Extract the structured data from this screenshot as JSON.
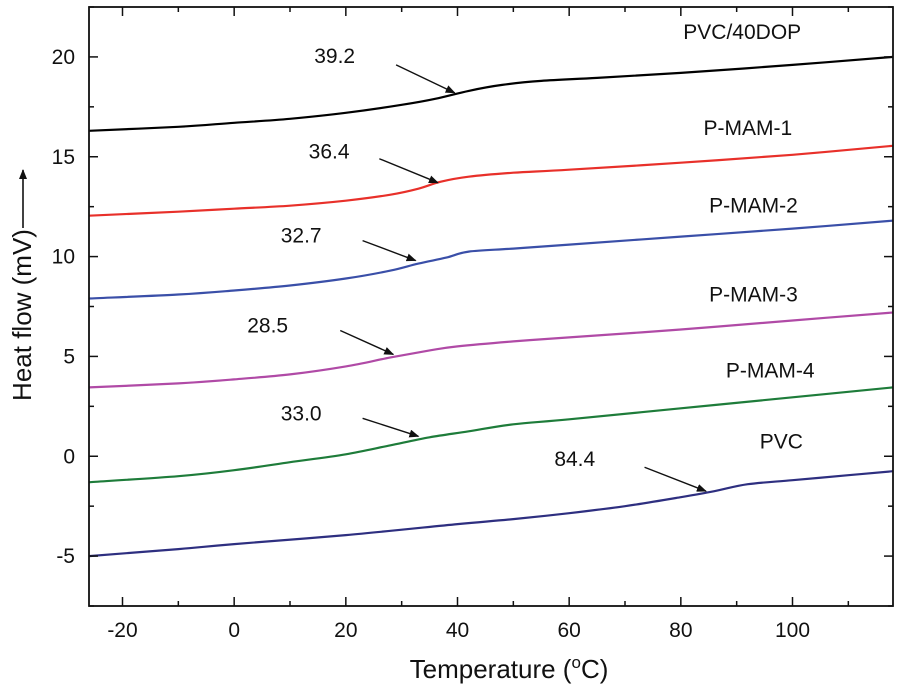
{
  "chart_data": {
    "type": "line",
    "title": "",
    "xlabel": "Temperature (",
    "xlabel_sup": "o",
    "xlabel_suffix": "C)",
    "ylabel": "Heat flow (mV)",
    "xlim": [
      -26,
      118
    ],
    "ylim": [
      -7.5,
      22.5
    ],
    "xticks": [
      -20,
      0,
      20,
      40,
      60,
      80,
      100
    ],
    "yticks": [
      -5,
      0,
      5,
      10,
      15,
      20
    ],
    "grid": false,
    "series": [
      {
        "name": "PVC/40DOP",
        "color": "#000000",
        "tg_label": "39.2",
        "tg_arrow_from": [
          29,
          19.6
        ],
        "tg_arrow_to": [
          39.5,
          18.2
        ],
        "tg_label_at": [
          18,
          19.7
        ],
        "name_at": [
          91,
          20.9
        ],
        "points": [
          [
            -26,
            16.3
          ],
          [
            -10,
            16.5
          ],
          [
            0,
            16.7
          ],
          [
            10,
            16.9
          ],
          [
            20,
            17.2
          ],
          [
            30,
            17.6
          ],
          [
            36,
            17.9
          ],
          [
            42,
            18.3
          ],
          [
            48,
            18.6
          ],
          [
            55,
            18.8
          ],
          [
            65,
            18.95
          ],
          [
            80,
            19.2
          ],
          [
            100,
            19.6
          ],
          [
            118,
            20.0
          ]
        ]
      },
      {
        "name": "P-MAM-1",
        "color": "#e8302a",
        "tg_label": "36.4",
        "tg_arrow_from": [
          26,
          14.9
        ],
        "tg_arrow_to": [
          36.5,
          13.7
        ],
        "tg_label_at": [
          17,
          14.9
        ],
        "name_at": [
          92,
          16.1
        ],
        "points": [
          [
            -26,
            12.05
          ],
          [
            -10,
            12.25
          ],
          [
            0,
            12.4
          ],
          [
            10,
            12.55
          ],
          [
            20,
            12.8
          ],
          [
            28,
            13.1
          ],
          [
            33,
            13.4
          ],
          [
            37,
            13.75
          ],
          [
            42,
            14.0
          ],
          [
            50,
            14.2
          ],
          [
            60,
            14.35
          ],
          [
            80,
            14.7
          ],
          [
            100,
            15.1
          ],
          [
            118,
            15.55
          ]
        ]
      },
      {
        "name": "P-MAM-2",
        "color": "#3a4fa8",
        "tg_label": "32.7",
        "tg_arrow_from": [
          23,
          10.8
        ],
        "tg_arrow_to": [
          32.5,
          9.8
        ],
        "tg_label_at": [
          12,
          10.7
        ],
        "name_at": [
          93,
          12.2
        ],
        "points": [
          [
            -26,
            7.9
          ],
          [
            -10,
            8.1
          ],
          [
            0,
            8.3
          ],
          [
            10,
            8.55
          ],
          [
            20,
            8.9
          ],
          [
            28,
            9.3
          ],
          [
            33,
            9.65
          ],
          [
            38,
            9.95
          ],
          [
            42,
            10.25
          ],
          [
            50,
            10.4
          ],
          [
            60,
            10.6
          ],
          [
            80,
            11.0
          ],
          [
            100,
            11.4
          ],
          [
            118,
            11.8
          ]
        ]
      },
      {
        "name": "P-MAM-3",
        "color": "#b04aa6",
        "tg_label": "28.5",
        "tg_arrow_from": [
          19,
          6.3
        ],
        "tg_arrow_to": [
          28.5,
          5.1
        ],
        "tg_label_at": [
          6,
          6.2
        ],
        "name_at": [
          93,
          7.75
        ],
        "points": [
          [
            -26,
            3.45
          ],
          [
            -10,
            3.65
          ],
          [
            0,
            3.85
          ],
          [
            10,
            4.1
          ],
          [
            20,
            4.5
          ],
          [
            28,
            4.95
          ],
          [
            35,
            5.3
          ],
          [
            40,
            5.5
          ],
          [
            50,
            5.75
          ],
          [
            60,
            5.95
          ],
          [
            80,
            6.35
          ],
          [
            100,
            6.8
          ],
          [
            118,
            7.2
          ]
        ]
      },
      {
        "name": "P-MAM-4",
        "color": "#1e7c3a",
        "tg_label": "33.0",
        "tg_arrow_from": [
          23,
          1.9
        ],
        "tg_arrow_to": [
          33,
          1.0
        ],
        "tg_label_at": [
          12,
          1.8
        ],
        "name_at": [
          96,
          3.95
        ],
        "points": [
          [
            -26,
            -1.3
          ],
          [
            -10,
            -1.0
          ],
          [
            0,
            -0.7
          ],
          [
            10,
            -0.3
          ],
          [
            20,
            0.1
          ],
          [
            28,
            0.55
          ],
          [
            35,
            0.95
          ],
          [
            42,
            1.25
          ],
          [
            50,
            1.6
          ],
          [
            60,
            1.85
          ],
          [
            80,
            2.4
          ],
          [
            100,
            2.95
          ],
          [
            118,
            3.45
          ]
        ]
      },
      {
        "name": "PVC",
        "color": "#2e2f80",
        "tg_label": "84.4",
        "tg_arrow_from": [
          73.5,
          -0.55
        ],
        "tg_arrow_to": [
          84.5,
          -1.75
        ],
        "tg_label_at": [
          61,
          -0.5
        ],
        "name_at": [
          98,
          0.4
        ],
        "points": [
          [
            -26,
            -5.0
          ],
          [
            -10,
            -4.65
          ],
          [
            0,
            -4.4
          ],
          [
            20,
            -3.95
          ],
          [
            40,
            -3.4
          ],
          [
            50,
            -3.15
          ],
          [
            60,
            -2.85
          ],
          [
            70,
            -2.5
          ],
          [
            80,
            -2.05
          ],
          [
            86,
            -1.75
          ],
          [
            92,
            -1.4
          ],
          [
            100,
            -1.2
          ],
          [
            110,
            -0.95
          ],
          [
            118,
            -0.75
          ]
        ]
      }
    ]
  }
}
